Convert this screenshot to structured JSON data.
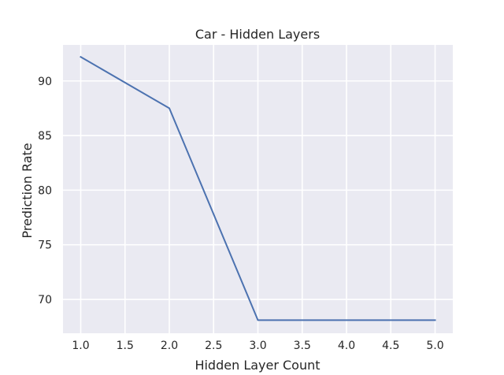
{
  "chart_data": {
    "type": "line",
    "title": "Car - Hidden Layers",
    "xlabel": "Hidden Layer Count",
    "ylabel": "Prediction Rate",
    "x": [
      1.0,
      2.0,
      3.0,
      4.0,
      5.0
    ],
    "series": [
      {
        "values": [
          92.2,
          87.5,
          68.1,
          68.1,
          68.1
        ]
      }
    ],
    "xlim": [
      0.8,
      5.2
    ],
    "ylim": [
      66.9,
      93.3
    ],
    "xticks": [
      1.0,
      1.5,
      2.0,
      2.5,
      3.0,
      3.5,
      4.0,
      4.5,
      5.0
    ],
    "xtick_labels": [
      "1.0",
      "1.5",
      "2.0",
      "2.5",
      "3.0",
      "3.5",
      "4.0",
      "4.5",
      "5.0"
    ],
    "yticks": [
      70,
      75,
      80,
      85,
      90
    ],
    "ytick_labels": [
      "70",
      "75",
      "80",
      "85",
      "90"
    ],
    "grid": true,
    "legend": "none",
    "colors": {
      "background": "#eaeaf2",
      "grid": "#ffffff",
      "line": "#4c72b0",
      "text": "#262626"
    }
  }
}
